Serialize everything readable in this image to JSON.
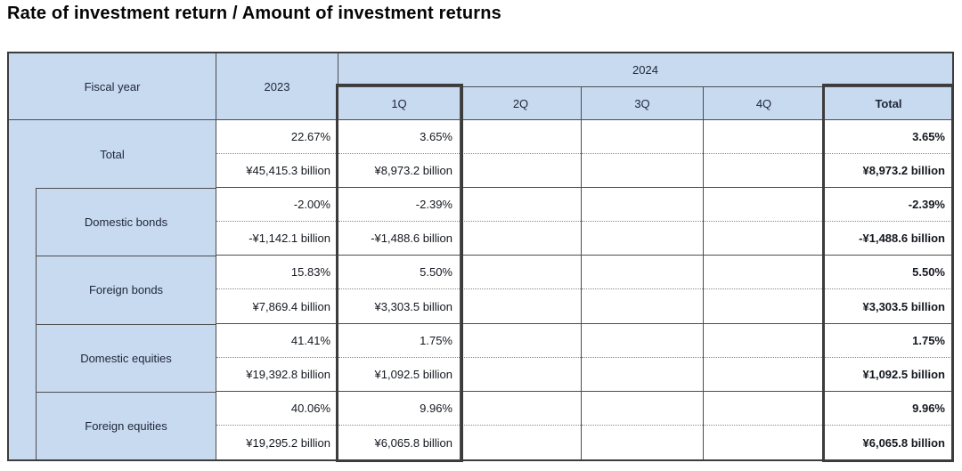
{
  "title": "Rate of investment return / Amount of investment returns",
  "colors": {
    "header_fill": "#c8daf0",
    "grid_line": "#4d4d4d",
    "outer_border": "#3c3c3c",
    "highlight_box_border": "#3c3c3c",
    "dotted_separator": "#8a8a8a",
    "title_text": "#050505",
    "cell_text": "#14181f"
  },
  "header": {
    "fiscal_year": "Fiscal year",
    "year_2023": "2023",
    "year_2024": "2024",
    "quarters": [
      "1Q",
      "2Q",
      "3Q",
      "4Q"
    ],
    "total": "Total"
  },
  "rows": [
    {
      "label": "Total",
      "y2023": {
        "rate": "22.67%",
        "amount": "¥45,415.3 billion"
      },
      "q1": {
        "rate": "3.65%",
        "amount": "¥8,973.2 billion"
      },
      "q2": {
        "rate": "",
        "amount": ""
      },
      "q3": {
        "rate": "",
        "amount": ""
      },
      "q4": {
        "rate": "",
        "amount": ""
      },
      "total": {
        "rate": "3.65%",
        "amount": "¥8,973.2 billion"
      }
    },
    {
      "label": "Domestic bonds",
      "y2023": {
        "rate": "-2.00%",
        "amount": "-¥1,142.1 billion"
      },
      "q1": {
        "rate": "-2.39%",
        "amount": "-¥1,488.6 billion"
      },
      "q2": {
        "rate": "",
        "amount": ""
      },
      "q3": {
        "rate": "",
        "amount": ""
      },
      "q4": {
        "rate": "",
        "amount": ""
      },
      "total": {
        "rate": "-2.39%",
        "amount": "-¥1,488.6 billion"
      }
    },
    {
      "label": "Foreign bonds",
      "y2023": {
        "rate": "15.83%",
        "amount": "¥7,869.4 billion"
      },
      "q1": {
        "rate": "5.50%",
        "amount": "¥3,303.5 billion"
      },
      "q2": {
        "rate": "",
        "amount": ""
      },
      "q3": {
        "rate": "",
        "amount": ""
      },
      "q4": {
        "rate": "",
        "amount": ""
      },
      "total": {
        "rate": "5.50%",
        "amount": "¥3,303.5 billion"
      }
    },
    {
      "label": "Domestic equities",
      "y2023": {
        "rate": "41.41%",
        "amount": "¥19,392.8 billion"
      },
      "q1": {
        "rate": "1.75%",
        "amount": "¥1,092.5 billion"
      },
      "q2": {
        "rate": "",
        "amount": ""
      },
      "q3": {
        "rate": "",
        "amount": ""
      },
      "q4": {
        "rate": "",
        "amount": ""
      },
      "total": {
        "rate": "1.75%",
        "amount": "¥1,092.5 billion"
      }
    },
    {
      "label": "Foreign equities",
      "y2023": {
        "rate": "40.06%",
        "amount": "¥19,295.2 billion"
      },
      "q1": {
        "rate": "9.96%",
        "amount": "¥6,065.8 billion"
      },
      "q2": {
        "rate": "",
        "amount": ""
      },
      "q3": {
        "rate": "",
        "amount": ""
      },
      "q4": {
        "rate": "",
        "amount": ""
      },
      "total": {
        "rate": "9.96%",
        "amount": "¥6,065.8 billion"
      }
    }
  ]
}
